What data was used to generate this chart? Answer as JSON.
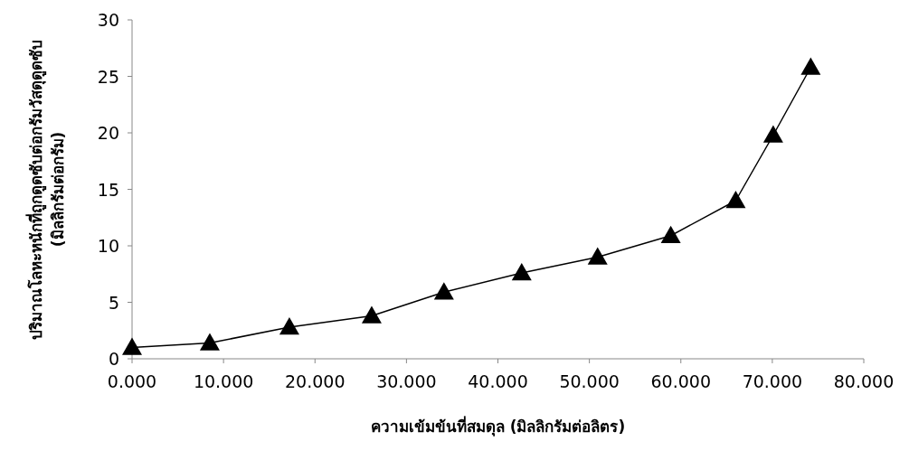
{
  "chart_data": {
    "type": "line",
    "xlabel": "ความเข้มข้นที่สมดุล (มิลลิกรัมต่อลิตร)",
    "ylabel": "ปริมาณโลหะหนักที่ถูกดูดซับต่อกรัมวัสดุดูดซับ (มิลลิกรัมต่อกรัม)",
    "x": [
      0,
      8.5,
      17.2,
      26.2,
      34.1,
      42.6,
      50.9,
      58.9,
      66.0,
      70.1,
      74.2
    ],
    "series": [
      {
        "color": "#000000",
        "values": [
          1.0,
          1.4,
          2.8,
          3.8,
          5.9,
          7.6,
          9.0,
          10.9,
          14.0,
          19.8,
          25.8
        ]
      }
    ],
    "xlim": [
      0,
      80
    ],
    "xticks": [
      {
        "value": 0,
        "label": "0.000"
      },
      {
        "value": 10,
        "label": "10.000"
      },
      {
        "value": 20,
        "label": "20.000"
      },
      {
        "value": 30,
        "label": "30.000"
      },
      {
        "value": 40,
        "label": "40.000"
      },
      {
        "value": 50,
        "label": "50.000"
      },
      {
        "value": 60,
        "label": "60.000"
      },
      {
        "value": 70,
        "label": "70.000"
      },
      {
        "value": 80,
        "label": "80.000"
      }
    ],
    "ylim": [
      0,
      30
    ],
    "yticks": [
      0,
      5,
      10,
      15,
      20,
      25,
      30
    ],
    "marker": "triangle",
    "line_style": "solid",
    "grid": false
  }
}
